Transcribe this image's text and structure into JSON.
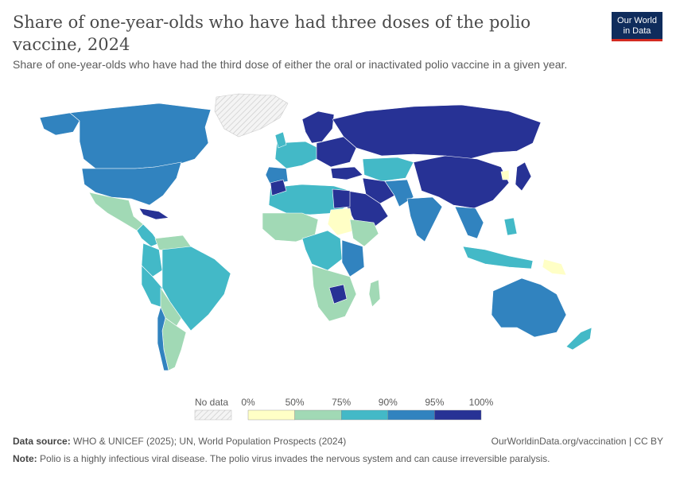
{
  "header": {
    "title": "Share of one-year-olds who have had three doses of the polio vaccine, 2024",
    "subtitle": "Share of one-year-olds who have had the third dose of either the oral or inactivated polio vaccine in a given year."
  },
  "logo": {
    "line1": "Our World",
    "line2": "in Data"
  },
  "legend": {
    "no_data_label": "No data",
    "ticks": [
      "0%",
      "50%",
      "75%",
      "90%",
      "95%",
      "100%"
    ],
    "bins": [
      {
        "from": 0,
        "to": 50,
        "color": "#ffffc6"
      },
      {
        "from": 50,
        "to": 75,
        "color": "#a1d9b5"
      },
      {
        "from": 75,
        "to": 90,
        "color": "#43b9c7"
      },
      {
        "from": 90,
        "to": 95,
        "color": "#3183bf"
      },
      {
        "from": 95,
        "to": 100,
        "color": "#273295"
      }
    ]
  },
  "footer": {
    "source_label": "Data source:",
    "source_text": "WHO & UNICEF (2025); UN, World Population Prospects (2024)",
    "url_text": "OurWorldinData.org/vaccination | CC BY",
    "note_label": "Note:",
    "note_text": "Polio is a highly infectious viral disease. The polio virus invades the nervous system and can cause irreversible paralysis."
  },
  "colors": {
    "no_data": "#e8e8e8",
    "ocean": "#ffffff",
    "border": "#ffffff"
  }
}
